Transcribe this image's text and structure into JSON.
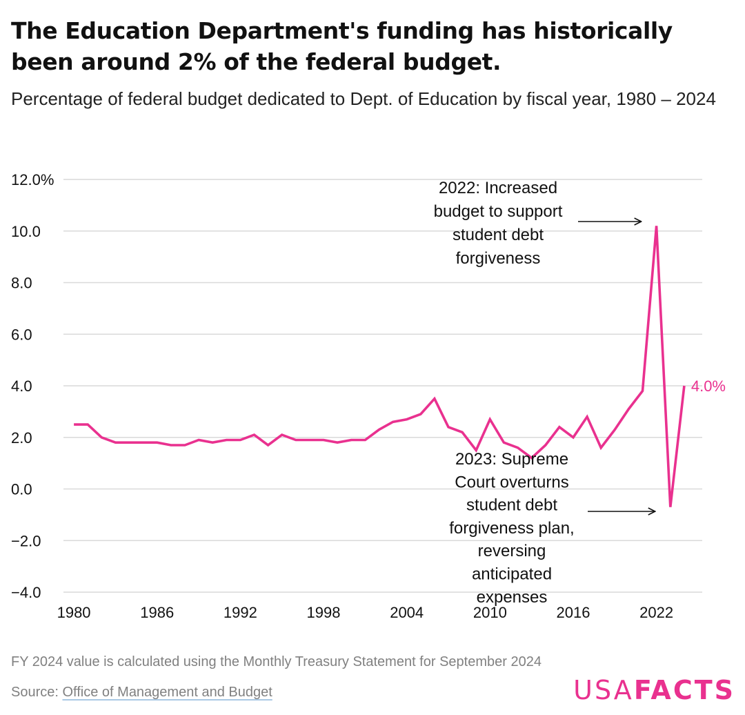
{
  "title": "The Education Department's funding has historically been around 2% of the federal budget.",
  "subtitle": "Percentage of federal budget dedicated to Dept. of Education by fiscal year, 1980 – 2024",
  "footnote": "FY 2024 value is calculated using the Monthly Treasury Statement for September 2024",
  "source_label": "Source: ",
  "source_link": "Office of Management and Budget",
  "logo": {
    "usa": "USA",
    "facts": "FACTS"
  },
  "colors": {
    "line": "#e9318f",
    "grid": "#d9d9d9",
    "text": "#111111",
    "muted": "#808080"
  },
  "chart_data": {
    "type": "line",
    "x": [
      1980,
      1981,
      1982,
      1983,
      1984,
      1985,
      1986,
      1987,
      1988,
      1989,
      1990,
      1991,
      1992,
      1993,
      1994,
      1995,
      1996,
      1997,
      1998,
      1999,
      2000,
      2001,
      2002,
      2003,
      2004,
      2005,
      2006,
      2007,
      2008,
      2009,
      2010,
      2011,
      2012,
      2013,
      2014,
      2015,
      2016,
      2017,
      2018,
      2019,
      2020,
      2021,
      2022,
      2023,
      2024
    ],
    "values": [
      2.5,
      2.5,
      2.0,
      1.8,
      1.8,
      1.8,
      1.8,
      1.7,
      1.7,
      1.9,
      1.8,
      1.9,
      1.9,
      2.1,
      1.7,
      2.1,
      1.9,
      1.9,
      1.9,
      1.8,
      1.9,
      1.9,
      2.3,
      2.6,
      2.7,
      2.9,
      3.5,
      2.4,
      2.2,
      1.5,
      2.7,
      1.8,
      1.6,
      1.2,
      1.7,
      2.4,
      2.0,
      2.8,
      1.6,
      2.3,
      3.1,
      3.8,
      10.2,
      -0.7,
      4.0
    ],
    "ylim": [
      -4,
      12
    ],
    "yticks": [
      -4,
      -2,
      0,
      2,
      4,
      6,
      8,
      10,
      12
    ],
    "ytick_labels": [
      "−4.0",
      "−2.0",
      "0.0",
      "2.0",
      "4.0",
      "6.0",
      "8.0",
      "10.0",
      "12.0%"
    ],
    "xticks": [
      1980,
      1986,
      1992,
      1998,
      2004,
      2010,
      2016,
      2022
    ],
    "xtick_labels": [
      "1980",
      "1986",
      "1992",
      "1998",
      "2004",
      "2010",
      "2016",
      "2022"
    ],
    "end_label": "4.0%",
    "grid": true,
    "annotations": [
      {
        "lines": [
          "2022: Increased",
          "budget to support",
          "student debt",
          "forgiveness"
        ],
        "target_x": 2022,
        "target_y": 10.2
      },
      {
        "lines": [
          "2023: Supreme",
          "Court overturns",
          "student debt",
          "forgiveness plan,",
          "reversing",
          "anticipated",
          "expenses"
        ],
        "target_x": 2023,
        "target_y": -0.7
      }
    ]
  }
}
